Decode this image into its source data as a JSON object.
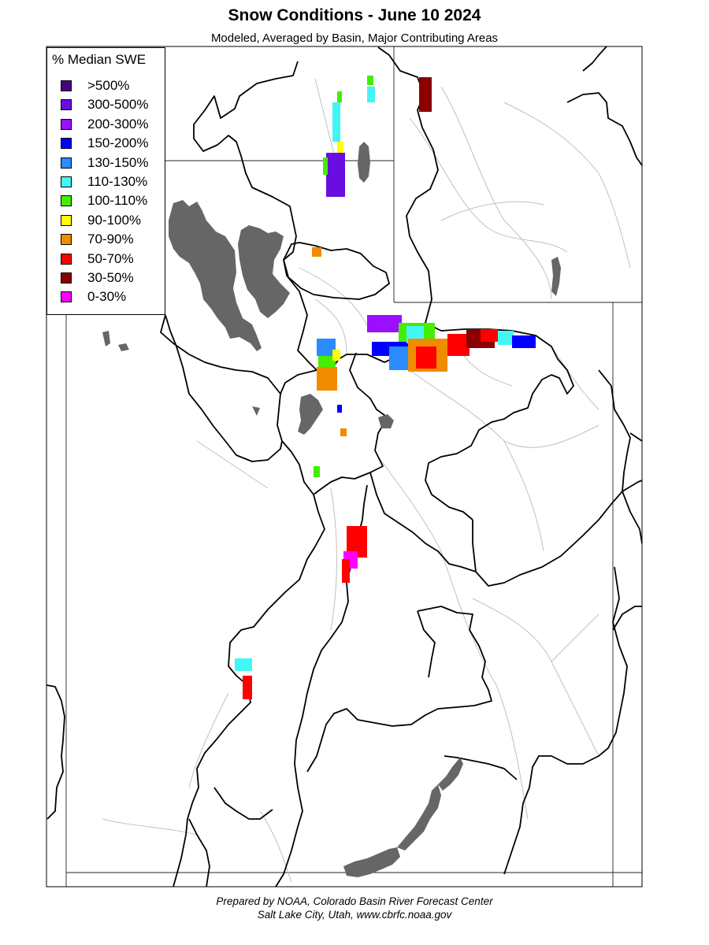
{
  "title": "Snow Conditions - June 10 2024",
  "subtitle": "Modeled, Averaged by Basin, Major Contributing Areas",
  "legend": {
    "title": "% Median SWE",
    "items": [
      {
        "label": ">500%",
        "color": "#4b0082"
      },
      {
        "label": "300-500%",
        "color": "#6a0de0"
      },
      {
        "label": "200-300%",
        "color": "#9a0fff"
      },
      {
        "label": "150-200%",
        "color": "#0000ff"
      },
      {
        "label": "130-150%",
        "color": "#2b8cff"
      },
      {
        "label": "110-130%",
        "color": "#44f5f5"
      },
      {
        "label": "100-110%",
        "color": "#44ee00"
      },
      {
        "label": "90-100%",
        "color": "#ffff00"
      },
      {
        "label": "70-90%",
        "color": "#f08c00"
      },
      {
        "label": "50-70%",
        "color": "#ff0000"
      },
      {
        "label": "30-50%",
        "color": "#8b0000"
      },
      {
        "label": "0-30%",
        "color": "#ff00ff"
      }
    ]
  },
  "map": {
    "lake_color": "#666666",
    "state_border_color": "#000000",
    "basin_border_color": "#000000",
    "river_color": "#c0c0c0"
  },
  "footer": {
    "line1": "Prepared by NOAA, Colorado Basin River Forecast Center",
    "line2": "Salt Lake City, Utah, www.cbrfc.noaa.gov"
  }
}
